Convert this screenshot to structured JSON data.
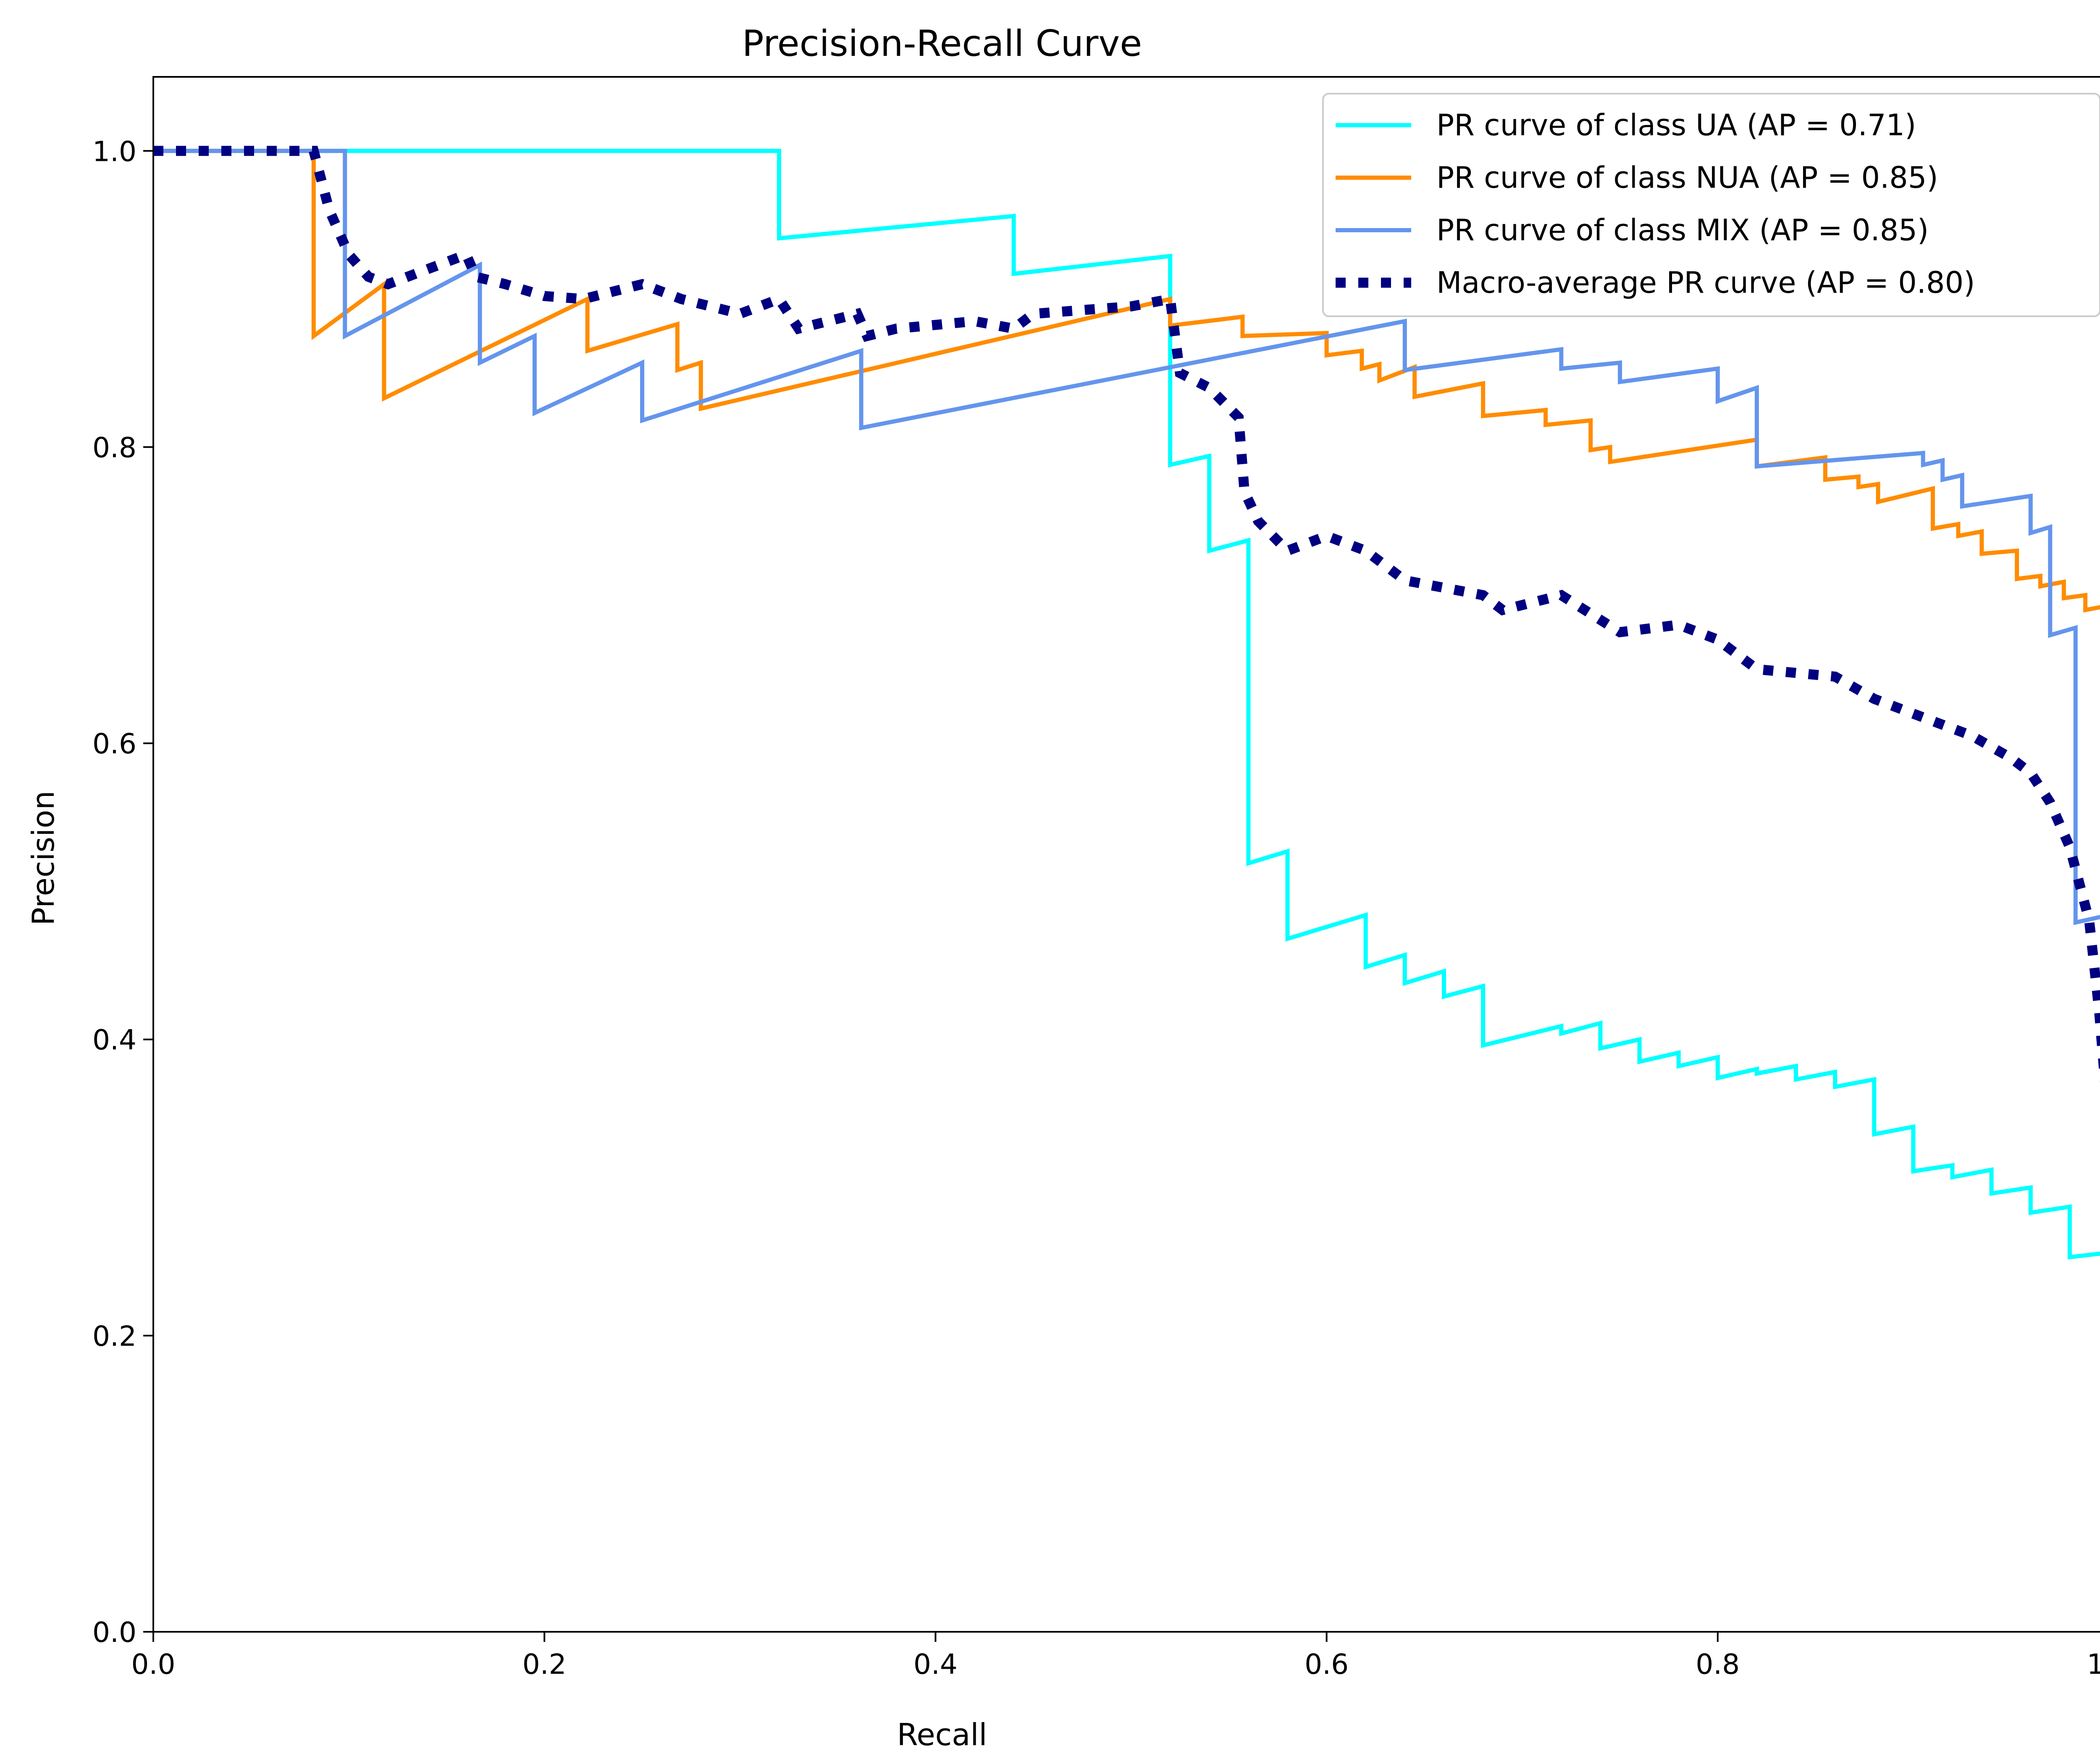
{
  "chart_data": {
    "type": "line",
    "title": "Precision-Recall Curve",
    "xlabel": "Recall",
    "ylabel": "Precision",
    "xlim": [
      0.0,
      1.0
    ],
    "ylim": [
      0.0,
      1.05
    ],
    "xticks": [
      "0.0",
      "0.2",
      "0.4",
      "0.6",
      "0.8",
      "1.0"
    ],
    "yticks": [
      "0.0",
      "0.2",
      "0.4",
      "0.6",
      "0.8",
      "1.0"
    ],
    "grid": false,
    "legend_position": "top-right",
    "series": [
      {
        "name": "PR curve of class UA (AP = 0.71)",
        "color": "#00ffff",
        "style": "solid",
        "x": [
          0.0,
          0.32,
          0.32,
          0.44,
          0.44,
          0.52,
          0.52,
          0.54,
          0.54,
          0.56,
          0.56,
          0.58,
          0.58,
          0.62,
          0.62,
          0.64,
          0.64,
          0.66,
          0.66,
          0.68,
          0.68,
          0.72,
          0.72,
          0.74,
          0.74,
          0.76,
          0.76,
          0.78,
          0.78,
          0.8,
          0.8,
          0.82,
          0.82,
          0.84,
          0.84,
          0.86,
          0.86,
          0.88,
          0.88,
          0.9,
          0.9,
          0.92,
          0.92,
          0.94,
          0.94,
          0.96,
          0.96,
          0.98,
          0.98,
          1.0,
          1.0
        ],
        "y": [
          1.0,
          1.0,
          0.941,
          0.956,
          0.917,
          0.929,
          0.788,
          0.794,
          0.73,
          0.737,
          0.519,
          0.527,
          0.468,
          0.484,
          0.449,
          0.457,
          0.438,
          0.446,
          0.429,
          0.436,
          0.396,
          0.409,
          0.404,
          0.411,
          0.394,
          0.4,
          0.385,
          0.391,
          0.382,
          0.388,
          0.374,
          0.38,
          0.377,
          0.382,
          0.373,
          0.378,
          0.368,
          0.373,
          0.336,
          0.341,
          0.311,
          0.315,
          0.307,
          0.312,
          0.296,
          0.3,
          0.283,
          0.287,
          0.253,
          0.256,
          0.243
        ]
      },
      {
        "name": "PR curve of class NUA (AP = 0.85)",
        "color": "#ff8c00",
        "style": "solid",
        "x": [
          0.0,
          0.082,
          0.082,
          0.118,
          0.118,
          0.222,
          0.222,
          0.268,
          0.268,
          0.28,
          0.28,
          0.52,
          0.52,
          0.557,
          0.557,
          0.6,
          0.6,
          0.618,
          0.618,
          0.627,
          0.627,
          0.645,
          0.645,
          0.68,
          0.68,
          0.712,
          0.712,
          0.735,
          0.735,
          0.745,
          0.745,
          0.82,
          0.82,
          0.855,
          0.855,
          0.872,
          0.872,
          0.882,
          0.882,
          0.91,
          0.91,
          0.923,
          0.923,
          0.935,
          0.935,
          0.953,
          0.953,
          0.965,
          0.965,
          0.977,
          0.977,
          0.988,
          0.988,
          1.0,
          1.0
        ],
        "y": [
          1.0,
          1.0,
          0.875,
          0.91,
          0.833,
          0.9,
          0.865,
          0.883,
          0.852,
          0.857,
          0.826,
          0.9,
          0.882,
          0.888,
          0.875,
          0.877,
          0.862,
          0.865,
          0.853,
          0.856,
          0.845,
          0.854,
          0.834,
          0.843,
          0.821,
          0.825,
          0.815,
          0.818,
          0.798,
          0.8,
          0.79,
          0.805,
          0.787,
          0.793,
          0.778,
          0.78,
          0.773,
          0.775,
          0.763,
          0.772,
          0.745,
          0.748,
          0.74,
          0.743,
          0.728,
          0.73,
          0.711,
          0.713,
          0.706,
          0.709,
          0.698,
          0.7,
          0.69,
          0.693,
          0.65
        ]
      },
      {
        "name": "PR curve of class MIX (AP = 0.85)",
        "color": "#6495ed",
        "style": "solid",
        "x": [
          0.0,
          0.098,
          0.098,
          0.167,
          0.167,
          0.195,
          0.195,
          0.25,
          0.25,
          0.362,
          0.362,
          0.64,
          0.64,
          0.72,
          0.72,
          0.75,
          0.75,
          0.8,
          0.8,
          0.82,
          0.82,
          0.905,
          0.905,
          0.915,
          0.915,
          0.925,
          0.925,
          0.96,
          0.96,
          0.97,
          0.97,
          0.983,
          0.983,
          1.0,
          1.0
        ],
        "y": [
          1.0,
          1.0,
          0.875,
          0.923,
          0.857,
          0.875,
          0.823,
          0.857,
          0.818,
          0.865,
          0.813,
          0.885,
          0.852,
          0.866,
          0.853,
          0.857,
          0.844,
          0.853,
          0.831,
          0.84,
          0.787,
          0.796,
          0.788,
          0.791,
          0.778,
          0.781,
          0.76,
          0.767,
          0.742,
          0.746,
          0.673,
          0.678,
          0.479,
          0.484,
          0.35
        ]
      },
      {
        "name": "Macro-average PR curve (AP = 0.80)",
        "color": "#000080",
        "style": "dotted",
        "x": [
          0.0,
          0.082,
          0.09,
          0.1,
          0.11,
          0.12,
          0.14,
          0.16,
          0.165,
          0.18,
          0.2,
          0.22,
          0.25,
          0.27,
          0.3,
          0.32,
          0.33,
          0.36,
          0.365,
          0.38,
          0.42,
          0.44,
          0.45,
          0.5,
          0.52,
          0.525,
          0.54,
          0.555,
          0.558,
          0.565,
          0.58,
          0.6,
          0.62,
          0.64,
          0.68,
          0.69,
          0.72,
          0.75,
          0.78,
          0.8,
          0.82,
          0.86,
          0.88,
          0.9,
          0.93,
          0.95,
          0.96,
          0.97,
          0.98,
          0.99,
          0.995,
          1.0
        ],
        "y": [
          1.0,
          1.0,
          0.96,
          0.93,
          0.915,
          0.91,
          0.92,
          0.93,
          0.915,
          0.91,
          0.902,
          0.9,
          0.91,
          0.9,
          0.89,
          0.9,
          0.88,
          0.89,
          0.875,
          0.88,
          0.885,
          0.88,
          0.89,
          0.895,
          0.9,
          0.85,
          0.84,
          0.82,
          0.77,
          0.75,
          0.73,
          0.74,
          0.73,
          0.71,
          0.7,
          0.69,
          0.7,
          0.675,
          0.68,
          0.67,
          0.65,
          0.645,
          0.63,
          0.62,
          0.605,
          0.59,
          0.58,
          0.56,
          0.53,
          0.48,
          0.42,
          0.34
        ]
      }
    ]
  }
}
